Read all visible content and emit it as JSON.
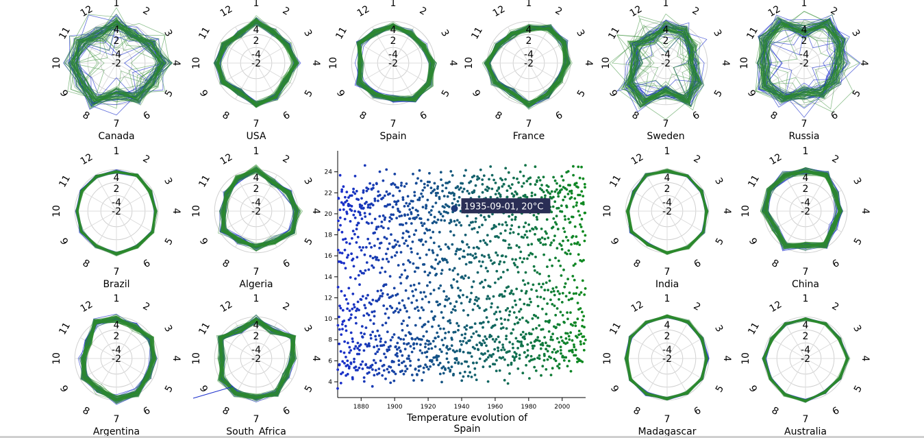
{
  "chart_data": [
    {
      "type": "radar-grid",
      "radial_labels": [
        "1",
        "2",
        "3",
        "4",
        "5",
        "6",
        "7",
        "8",
        "9",
        "10",
        "11",
        "12"
      ],
      "tick_labels": [
        "-4",
        "-2",
        "2",
        "4"
      ],
      "series_colors": {
        "early": "#1a2ecc",
        "late": "#2e8b2e"
      },
      "countries": [
        {
          "name": "Canada",
          "pattern": "wild"
        },
        {
          "name": "USA",
          "pattern": "medium"
        },
        {
          "name": "Spain",
          "pattern": "medium"
        },
        {
          "name": "France",
          "pattern": "medium"
        },
        {
          "name": "Sweden",
          "pattern": "wild"
        },
        {
          "name": "Russia",
          "pattern": "wild"
        },
        {
          "name": "Brazil",
          "pattern": "tight"
        },
        {
          "name": "Algeria",
          "pattern": "medium"
        },
        {
          "name": "India",
          "pattern": "tight"
        },
        {
          "name": "China",
          "pattern": "medium"
        },
        {
          "name": "Argentina",
          "pattern": "medium"
        },
        {
          "name": "South_Africa",
          "pattern": "medium"
        },
        {
          "name": "Madagascar",
          "pattern": "tight"
        },
        {
          "name": "Australia",
          "pattern": "tight"
        }
      ]
    },
    {
      "type": "scatter",
      "title": "Temperature evolution of Spain",
      "title_lines": [
        "Temperature evolution of",
        "Spain"
      ],
      "xlim": [
        1866,
        2014
      ],
      "ylim": [
        2.5,
        26
      ],
      "x_ticks": [
        1880,
        1900,
        1920,
        1940,
        1960,
        1980,
        2000
      ],
      "y_ticks": [
        4,
        6,
        8,
        10,
        12,
        14,
        16,
        18,
        20,
        22,
        24
      ],
      "color_start": "#1a2ecc",
      "color_end": "#0e8a1e",
      "highlight": {
        "date": "1935-09-01",
        "value": 20.5,
        "label": "1935-09-01, 20°C"
      },
      "approx_point_count": 1800
    }
  ]
}
